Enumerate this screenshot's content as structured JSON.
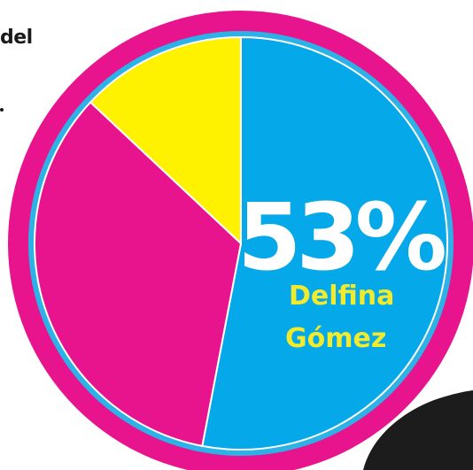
{
  "corner_text": "del",
  "chart_data": {
    "type": "pie",
    "title": "",
    "slices": [
      {
        "label": "Delfina Gómez",
        "value": 53,
        "color": "#05a8e8"
      },
      {
        "label": "",
        "value": 34,
        "color": "#e7148e"
      },
      {
        "label": "",
        "value": 13,
        "color": "#fff200"
      }
    ],
    "start_angle_deg": 0,
    "direction": "clockwise",
    "ring_color": "#e7148e",
    "inner_ring_color": "#2cb2e6",
    "legend": "none",
    "highlight": {
      "value_label": "53%",
      "name_lines": [
        "Delfina",
        "Gómez"
      ]
    }
  },
  "colors": {
    "background": "#ffffff",
    "label_value": "#ffffff",
    "label_name": "#f2ea2c",
    "dark_shape": "#1c1c1c"
  }
}
